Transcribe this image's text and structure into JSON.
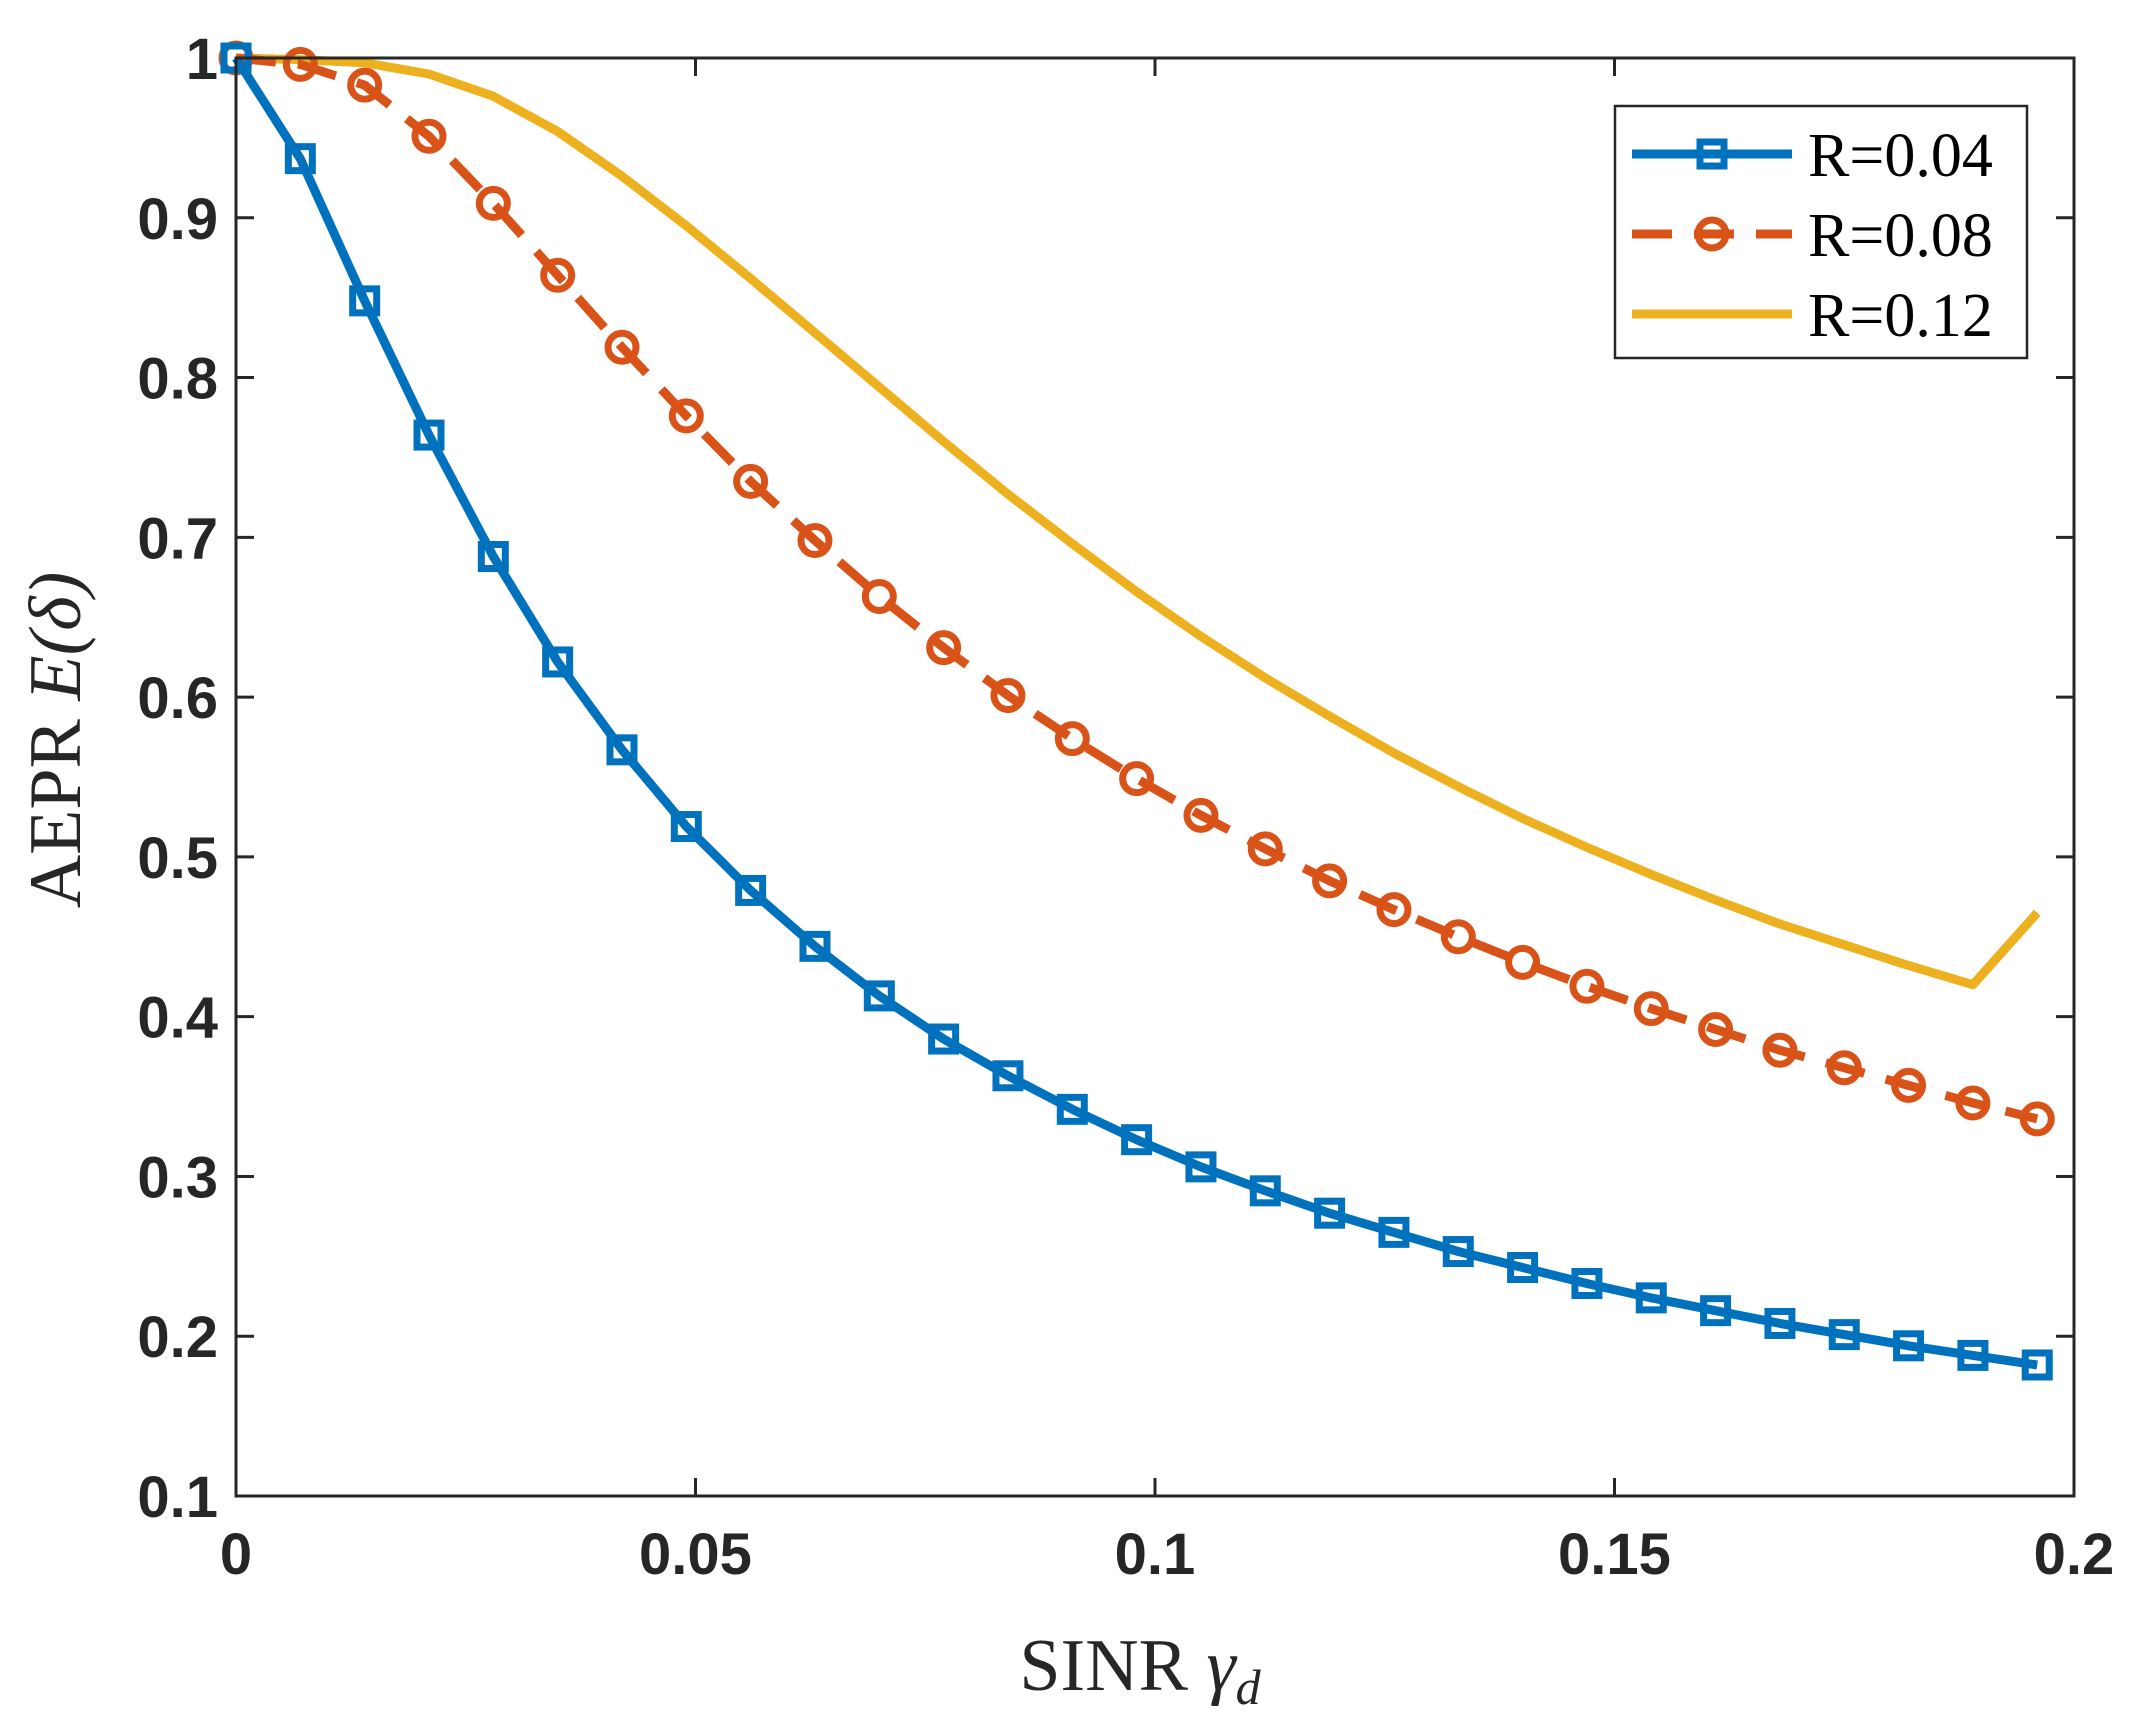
{
  "chart_data": {
    "type": "line",
    "title": "",
    "xlabel": {
      "text": "SINR ",
      "symbol": "γ",
      "subscript": "d"
    },
    "ylabel": {
      "text": "AEPR ",
      "symbol": "E(δ)"
    },
    "xlim": [
      0,
      0.2
    ],
    "ylim": [
      0.1,
      1
    ],
    "xticks": [
      0,
      0.05,
      0.1,
      0.15,
      0.2
    ],
    "xtick_labels": [
      "0",
      "0.05",
      "0.1",
      "0.15",
      "0.2"
    ],
    "yticks": [
      0.1,
      0.2,
      0.3,
      0.4,
      0.5,
      0.6,
      0.7,
      0.8,
      0.9,
      1
    ],
    "ytick_labels": [
      "0.1",
      "0.2",
      "0.3",
      "0.4",
      "0.5",
      "0.6",
      "0.7",
      "0.8",
      "0.9",
      "1"
    ],
    "grid": false,
    "legend_position": "top-right",
    "x": [
      0,
      0.007,
      0.014,
      0.021,
      0.028,
      0.035,
      0.042,
      0.049,
      0.056,
      0.063,
      0.07,
      0.077,
      0.084,
      0.091,
      0.098,
      0.105,
      0.112,
      0.119,
      0.126,
      0.133,
      0.14,
      0.147,
      0.154,
      0.161,
      0.168,
      0.175,
      0.182,
      0.189,
      0.196
    ],
    "series": [
      {
        "name": "R=0.04",
        "color": "#0072BD",
        "line_style": "solid",
        "marker": "square",
        "values": [
          1.0,
          0.937,
          0.848,
          0.764,
          0.688,
          0.622,
          0.567,
          0.519,
          0.479,
          0.444,
          0.413,
          0.386,
          0.363,
          0.342,
          0.323,
          0.306,
          0.291,
          0.277,
          0.265,
          0.253,
          0.243,
          0.233,
          0.224,
          0.216,
          0.208,
          0.201,
          0.194,
          0.188,
          0.182
        ]
      },
      {
        "name": "R=0.08",
        "color": "#D95319",
        "line_style": "dashed",
        "marker": "circle",
        "values": [
          1.0,
          0.996,
          0.983,
          0.951,
          0.909,
          0.864,
          0.819,
          0.776,
          0.735,
          0.698,
          0.663,
          0.631,
          0.601,
          0.574,
          0.549,
          0.526,
          0.505,
          0.485,
          0.467,
          0.45,
          0.434,
          0.419,
          0.405,
          0.392,
          0.379,
          0.368,
          0.357,
          0.346,
          0.336
        ]
      },
      {
        "name": "R=0.12",
        "color": "#EDB120",
        "line_style": "solid",
        "marker": "none",
        "values": [
          1.0,
          0.999,
          0.997,
          0.99,
          0.976,
          0.954,
          0.926,
          0.895,
          0.862,
          0.828,
          0.794,
          0.76,
          0.727,
          0.696,
          0.666,
          0.638,
          0.612,
          0.588,
          0.565,
          0.544,
          0.524,
          0.506,
          0.489,
          0.473,
          0.458,
          0.445,
          0.432,
          0.42,
          0.465
        ]
      }
    ]
  }
}
